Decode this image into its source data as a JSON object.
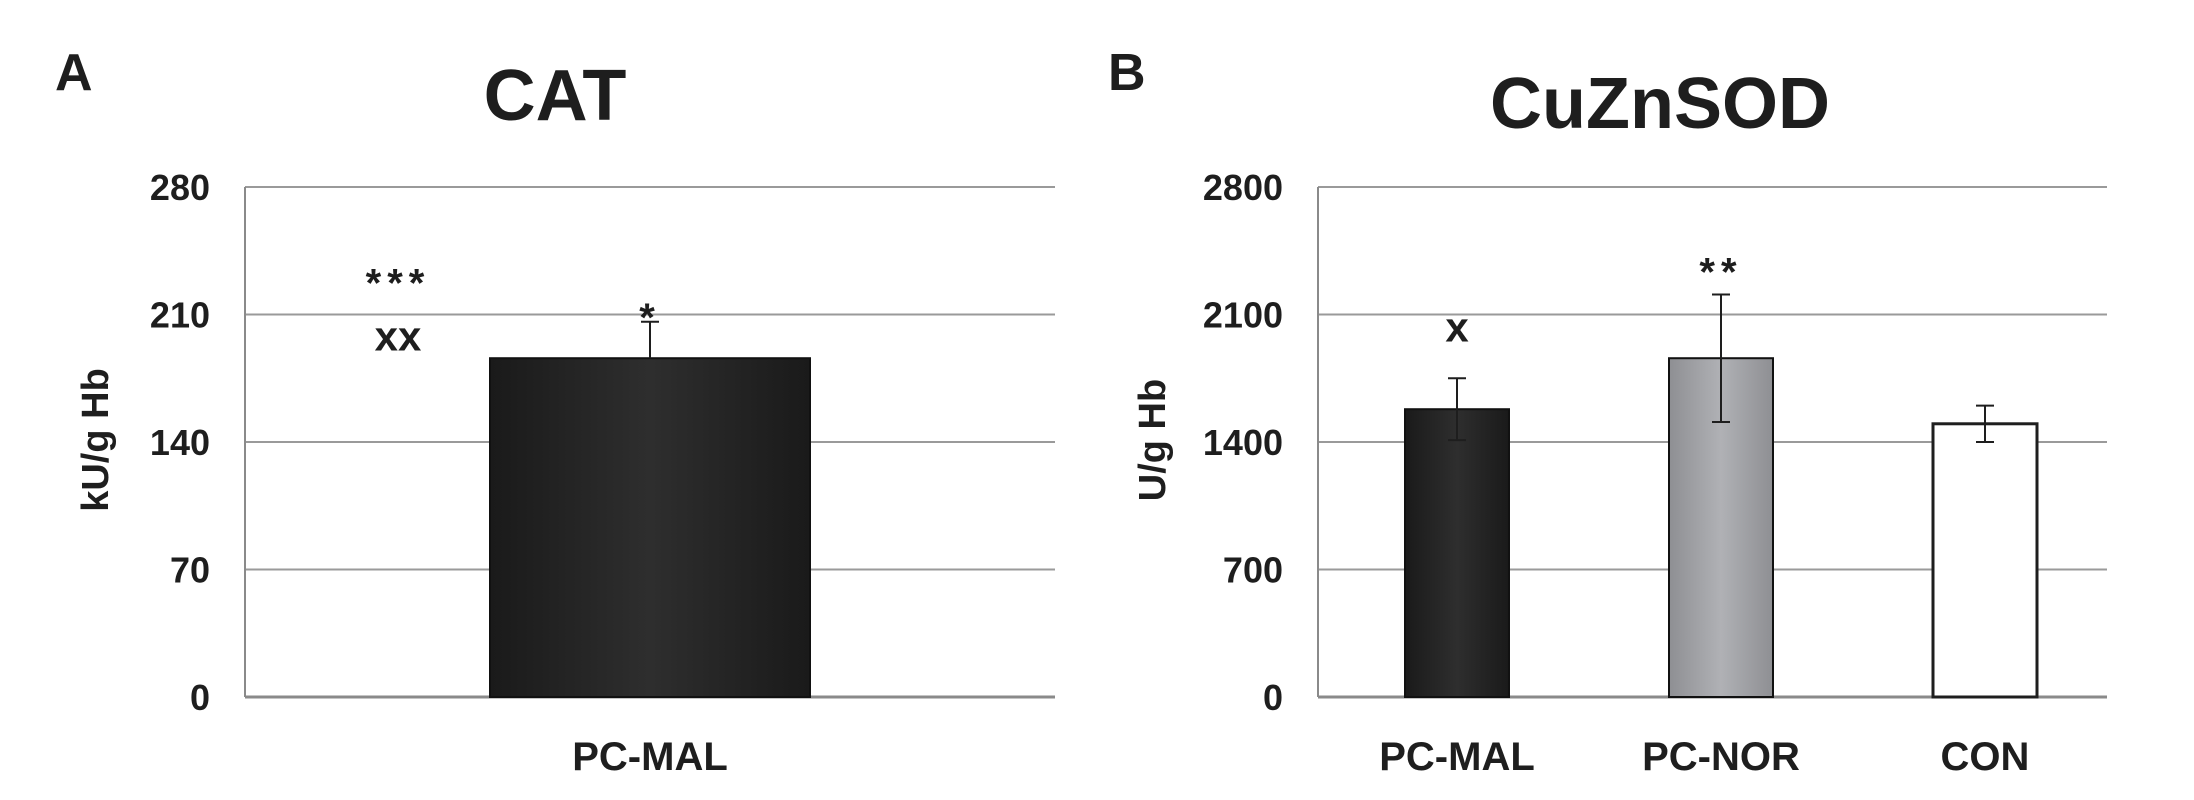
{
  "chart_data": [
    {
      "type": "bar",
      "panel": "A",
      "title": "CAT",
      "ylabel": "kU/g Hb",
      "xlabel": "",
      "ylim": [
        0,
        280
      ],
      "yticks": [
        0,
        70,
        140,
        210,
        280
      ],
      "grid": true,
      "categories": [
        "PC-MAL"
      ],
      "values": [
        186
      ],
      "errors": [
        20
      ],
      "colors": [
        "#262626"
      ],
      "annotations": [
        {
          "text": "*",
          "category": "PC-MAL",
          "value": 213
        },
        {
          "text": "***",
          "position": "upper-left",
          "value": 232
        },
        {
          "text": "xx",
          "position": "upper-left",
          "value": 198
        }
      ]
    },
    {
      "type": "bar",
      "panel": "B",
      "title": "CuZnSOD",
      "ylabel": "U/g Hb",
      "xlabel": "",
      "ylim": [
        0,
        2800
      ],
      "yticks": [
        0,
        700,
        1400,
        2100,
        2800
      ],
      "grid": true,
      "categories": [
        "PC-MAL",
        "PC-NOR",
        "CON"
      ],
      "values": [
        1580,
        1860,
        1500
      ],
      "errors": [
        170,
        350,
        100
      ],
      "colors": [
        "#262626",
        "#a3a4a8",
        "#ffffff"
      ],
      "annotations": [
        {
          "text": "x",
          "category": "PC-MAL",
          "value": 2030
        },
        {
          "text": "**",
          "category": "PC-NOR",
          "value": 2380
        }
      ]
    }
  ]
}
